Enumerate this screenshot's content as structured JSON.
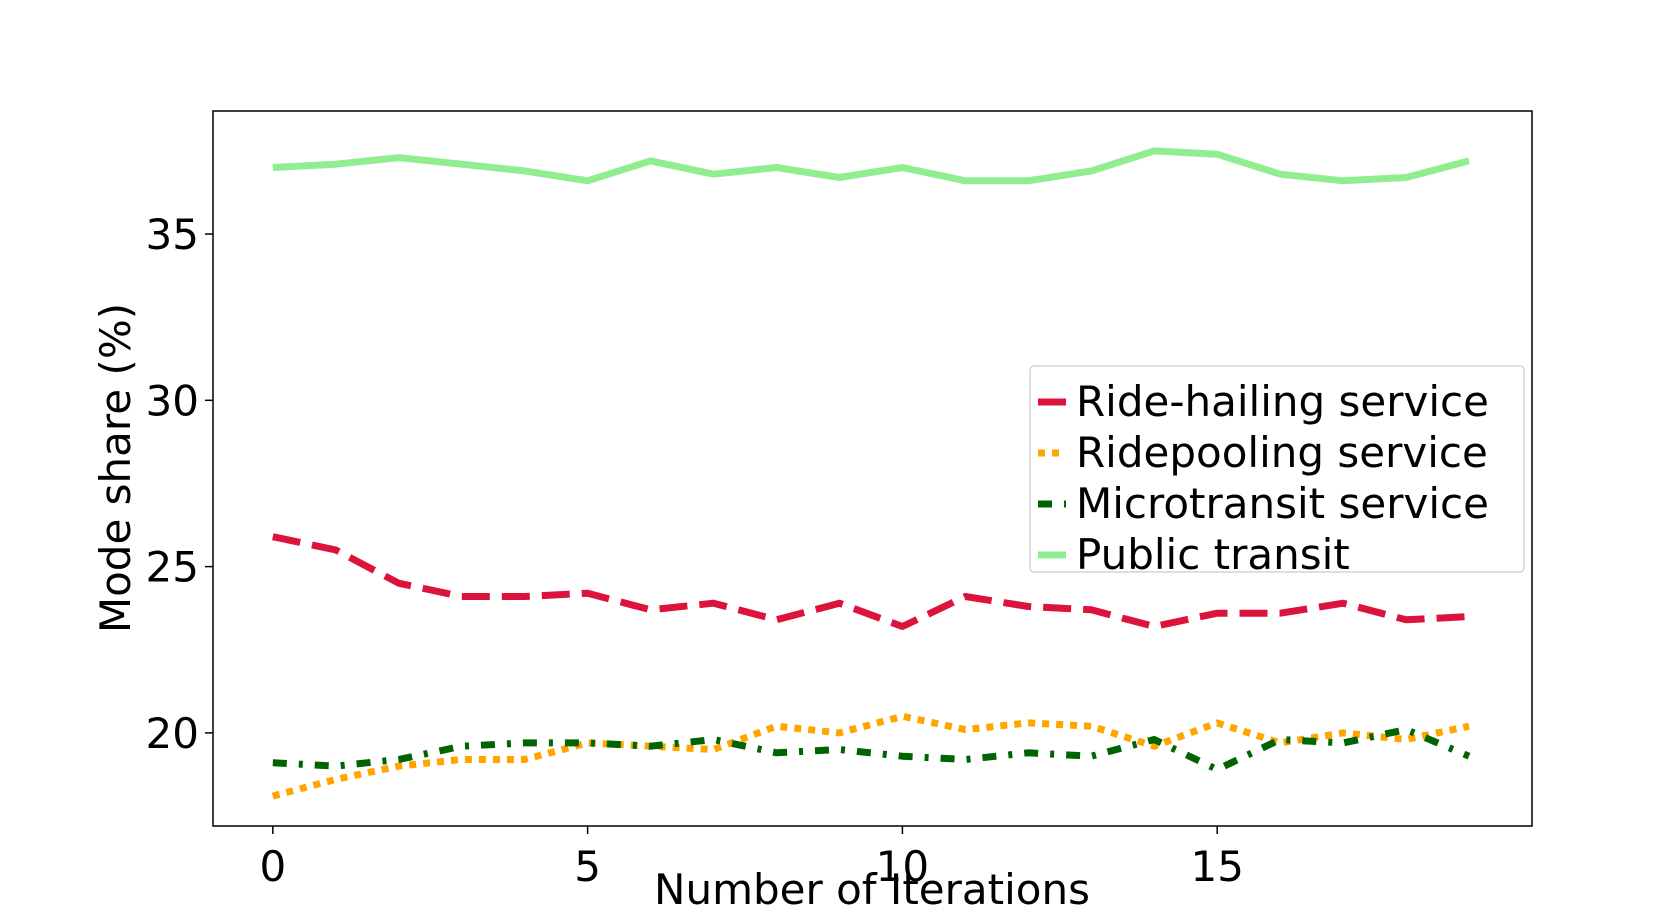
{
  "chart_data": {
    "type": "line",
    "title": "",
    "xlabel": "Number of Iterations",
    "ylabel": "Mode share (%)",
    "xlim": [
      -0.95,
      20.0
    ],
    "ylim": [
      17.2,
      38.7
    ],
    "xticks": [
      0,
      5,
      10,
      15
    ],
    "yticks": [
      20,
      25,
      30,
      35
    ],
    "xtick_labels": [
      "0",
      "5",
      "10",
      "15"
    ],
    "ytick_labels": [
      "20",
      "25",
      "30",
      "35"
    ],
    "grid": false,
    "legend_position": "center-right",
    "x": [
      0,
      1,
      2,
      3,
      4,
      5,
      6,
      7,
      8,
      9,
      10,
      11,
      12,
      13,
      14,
      15,
      16,
      17,
      18,
      19
    ],
    "series": [
      {
        "name": "Ride-hailing service",
        "color": "#dc143c",
        "dash": "dashed",
        "values": [
          25.9,
          25.5,
          24.5,
          24.1,
          24.1,
          24.2,
          23.7,
          23.9,
          23.4,
          23.9,
          23.2,
          24.1,
          23.8,
          23.7,
          23.2,
          23.6,
          23.6,
          23.9,
          23.4,
          23.5
        ]
      },
      {
        "name": "Ridepooling service",
        "color": "#ffa500",
        "dash": "dotted",
        "values": [
          18.1,
          18.6,
          19.0,
          19.2,
          19.2,
          19.7,
          19.6,
          19.5,
          20.2,
          20.0,
          20.5,
          20.1,
          20.3,
          20.2,
          19.6,
          20.3,
          19.7,
          20.0,
          19.8,
          20.2
        ]
      },
      {
        "name": "Microtransit service",
        "color": "#006400",
        "dash": "dashdot",
        "values": [
          19.1,
          19.0,
          19.2,
          19.6,
          19.7,
          19.7,
          19.6,
          19.8,
          19.4,
          19.5,
          19.3,
          19.2,
          19.4,
          19.3,
          19.8,
          18.9,
          19.8,
          19.7,
          20.1,
          19.3
        ]
      },
      {
        "name": "Public transit",
        "color": "#90ee90",
        "dash": "solid",
        "values": [
          37.0,
          37.1,
          37.3,
          37.1,
          36.9,
          36.6,
          37.2,
          36.8,
          37.0,
          36.7,
          37.0,
          36.6,
          36.6,
          36.9,
          37.5,
          37.4,
          36.8,
          36.6,
          36.7,
          37.2
        ]
      }
    ]
  }
}
